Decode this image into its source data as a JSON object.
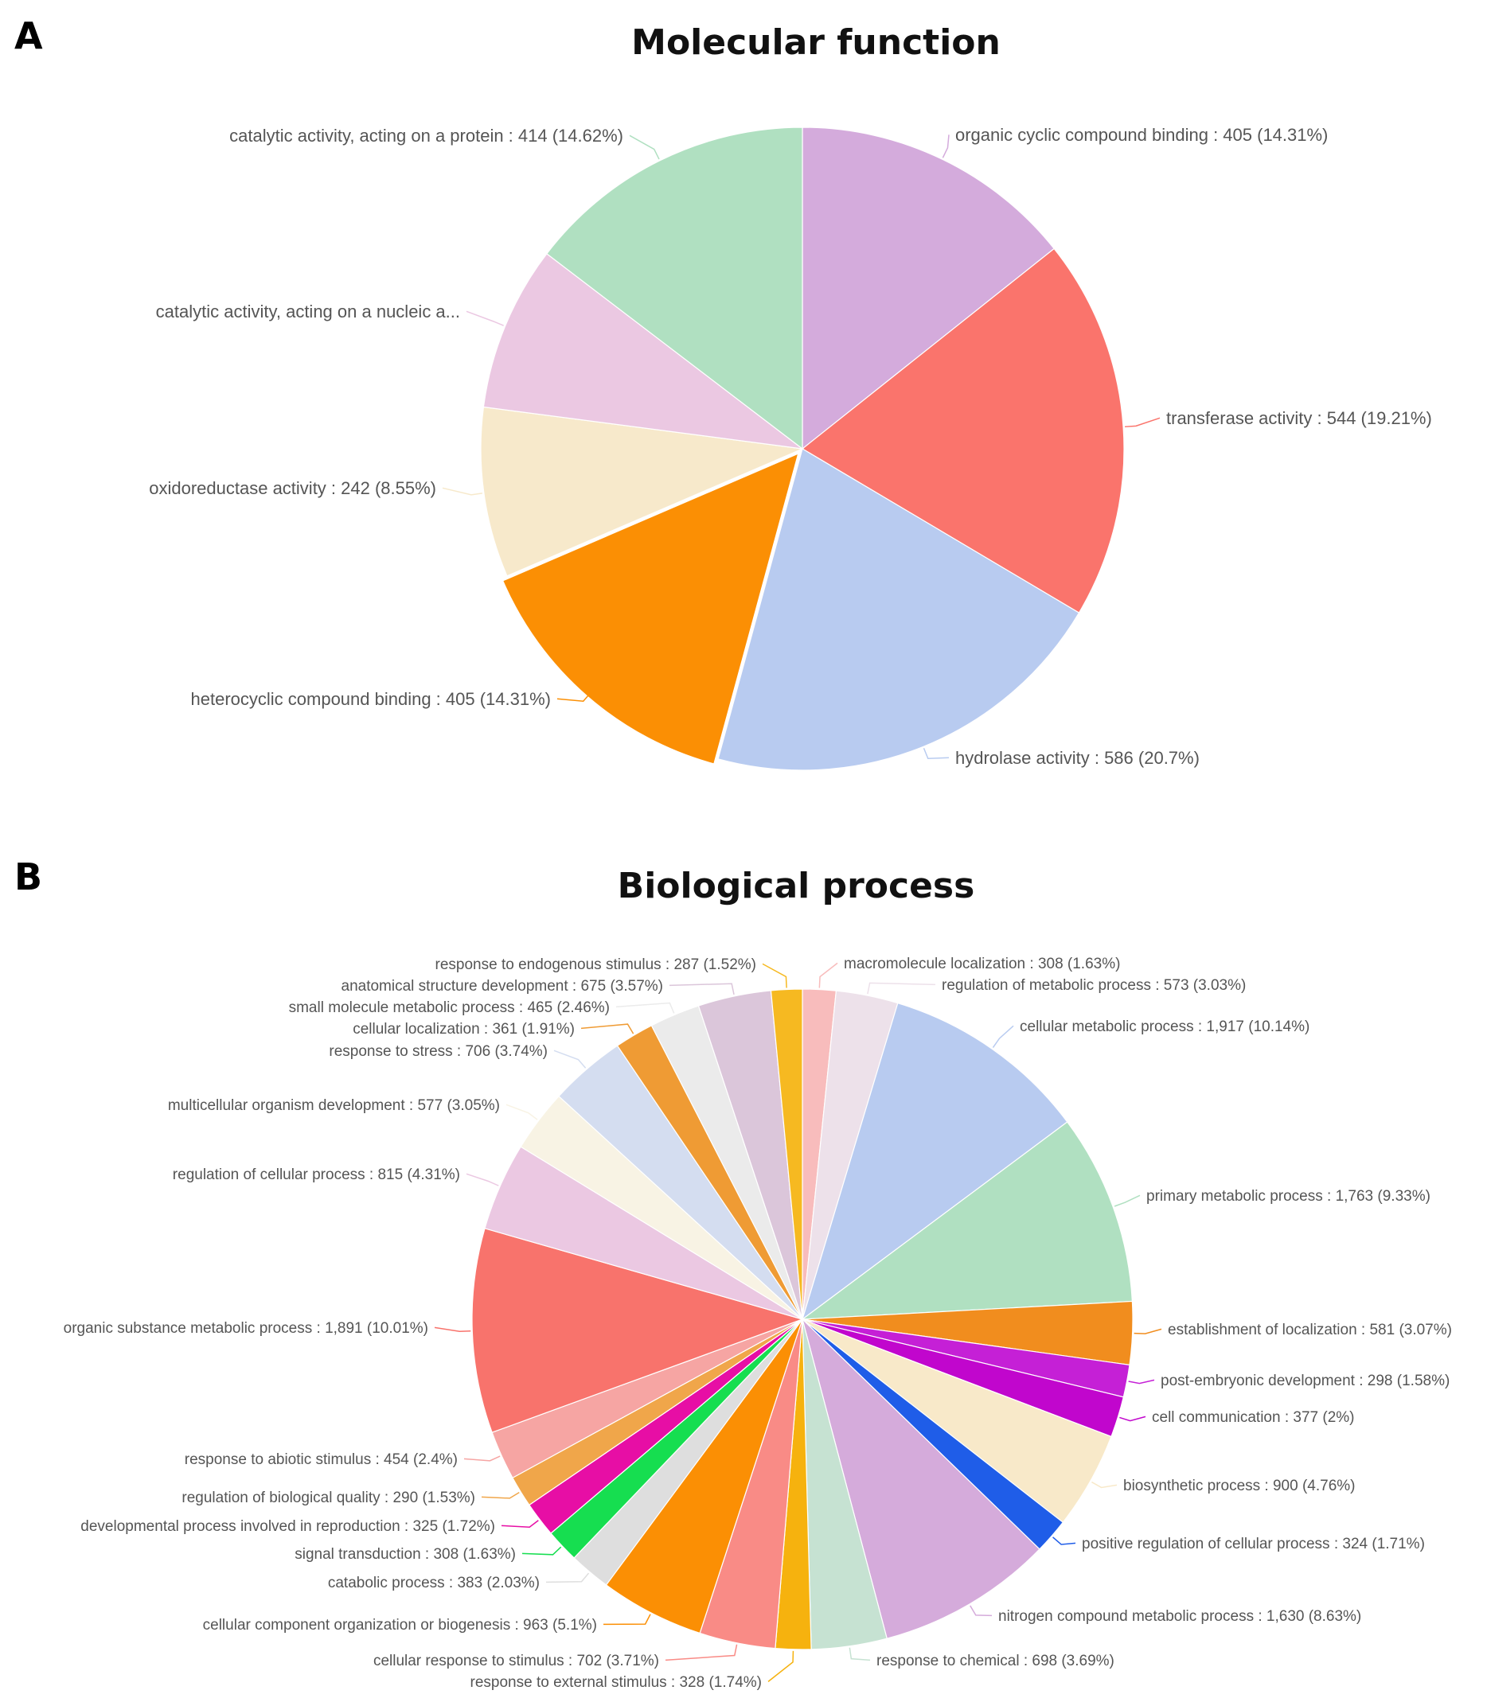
{
  "panels": {
    "a": {
      "letter": "A",
      "title": "Molecular function"
    },
    "b": {
      "letter": "B",
      "title": "Biological process"
    }
  },
  "chart_data": [
    {
      "type": "pie",
      "title": "Molecular function",
      "slices": [
        {
          "label": "organic cyclic compound binding : 405 (14.31%)",
          "value": 405,
          "percent": 14.31,
          "color": "#d4abdc"
        },
        {
          "label": "transferase activity : 544 (19.21%)",
          "value": 544,
          "percent": 19.21,
          "color": "#fa746c"
        },
        {
          "label": "hydrolase activity : 586 (20.7%)",
          "value": 586,
          "percent": 20.7,
          "color": "#b8cbf0"
        },
        {
          "label": "heterocyclic compound binding : 405 (14.31%)",
          "value": 405,
          "percent": 14.31,
          "color": "#fb8f04"
        },
        {
          "label": "oxidoreductase activity : 242 (8.55%)",
          "value": 242,
          "percent": 8.55,
          "color": "#f7e9cb"
        },
        {
          "label": "catalytic activity, acting on a nucleic a...",
          "value": 235,
          "percent": 8.3,
          "color": "#ebc8e2"
        },
        {
          "label": "catalytic activity, acting on a protein : 414 (14.62%)",
          "value": 414,
          "percent": 14.62,
          "color": "#b0e0c1"
        }
      ]
    },
    {
      "type": "pie",
      "title": "Biological process",
      "slices": [
        {
          "label": "macromolecule localization : 308 (1.63%)",
          "value": 308,
          "percent": 1.63,
          "color": "#f8bcbc"
        },
        {
          "label": "regulation of metabolic process : 573 (3.03%)",
          "value": 573,
          "percent": 3.03,
          "color": "#ede1ea"
        },
        {
          "label": "cellular metabolic process : 1,917 (10.14%)",
          "value": 1917,
          "percent": 10.14,
          "color": "#b8cbf0"
        },
        {
          "label": "primary metabolic process : 1,763 (9.33%)",
          "value": 1763,
          "percent": 9.33,
          "color": "#b0e0c1"
        },
        {
          "label": "establishment of localization : 581 (3.07%)",
          "value": 581,
          "percent": 3.07,
          "color": "#f18d1e"
        },
        {
          "label": "post-embryonic development : 298 (1.58%)",
          "value": 298,
          "percent": 1.58,
          "color": "#c520d6"
        },
        {
          "label": "cell communication : 377 (2%)",
          "value": 377,
          "percent": 2.0,
          "color": "#c106cd"
        },
        {
          "label": "biosynthetic process : 900 (4.76%)",
          "value": 900,
          "percent": 4.76,
          "color": "#f8e9c9"
        },
        {
          "label": "positive regulation of cellular process : 324 (1.71%)",
          "value": 324,
          "percent": 1.71,
          "color": "#1f5de8"
        },
        {
          "label": "nitrogen compound metabolic process : 1,630 (8.63%)",
          "value": 1630,
          "percent": 8.63,
          "color": "#d5abdb"
        },
        {
          "label": "response to chemical : 698 (3.69%)",
          "value": 698,
          "percent": 3.69,
          "color": "#c6e2d2"
        },
        {
          "label": "response to external stimulus : 328 (1.74%)",
          "value": 328,
          "percent": 1.74,
          "color": "#f6b20e"
        },
        {
          "label": "cellular response to stimulus : 702 (3.71%)",
          "value": 702,
          "percent": 3.71,
          "color": "#f98b86"
        },
        {
          "label": "cellular component organization or biogenesis : 963 (5.1%)",
          "value": 963,
          "percent": 5.1,
          "color": "#fb8f04"
        },
        {
          "label": "catabolic process : 383 (2.03%)",
          "value": 383,
          "percent": 2.03,
          "color": "#dedede"
        },
        {
          "label": "signal transduction : 308 (1.63%)",
          "value": 308,
          "percent": 1.63,
          "color": "#16de50"
        },
        {
          "label": "developmental process involved in reproduction : 325 (1.72%)",
          "value": 325,
          "percent": 1.72,
          "color": "#e70ea5"
        },
        {
          "label": "regulation of biological quality : 290 (1.53%)",
          "value": 290,
          "percent": 1.53,
          "color": "#f0a64a"
        },
        {
          "label": "response to abiotic stimulus : 454 (2.4%)",
          "value": 454,
          "percent": 2.4,
          "color": "#f6a5a3"
        },
        {
          "label": "organic substance metabolic process : 1,891 (10.01%)",
          "value": 1891,
          "percent": 10.01,
          "color": "#f8736c"
        },
        {
          "label": "regulation of cellular process : 815 (4.31%)",
          "value": 815,
          "percent": 4.31,
          "color": "#ebc8e2"
        },
        {
          "label": "multicellular organism development : 577 (3.05%)",
          "value": 577,
          "percent": 3.05,
          "color": "#f8f3e4"
        },
        {
          "label": "response to stress : 706 (3.74%)",
          "value": 706,
          "percent": 3.74,
          "color": "#d4ddf0"
        },
        {
          "label": "cellular localization : 361 (1.91%)",
          "value": 361,
          "percent": 1.91,
          "color": "#ef9b34"
        },
        {
          "label": "small molecule metabolic process : 465 (2.46%)",
          "value": 465,
          "percent": 2.46,
          "color": "#ebebeb"
        },
        {
          "label": "anatomical structure development : 675 (3.57%)",
          "value": 675,
          "percent": 3.57,
          "color": "#dbc6da"
        },
        {
          "label": "response to endogenous stimulus : 287 (1.52%)",
          "value": 287,
          "percent": 1.52,
          "color": "#f6b921"
        }
      ]
    }
  ]
}
